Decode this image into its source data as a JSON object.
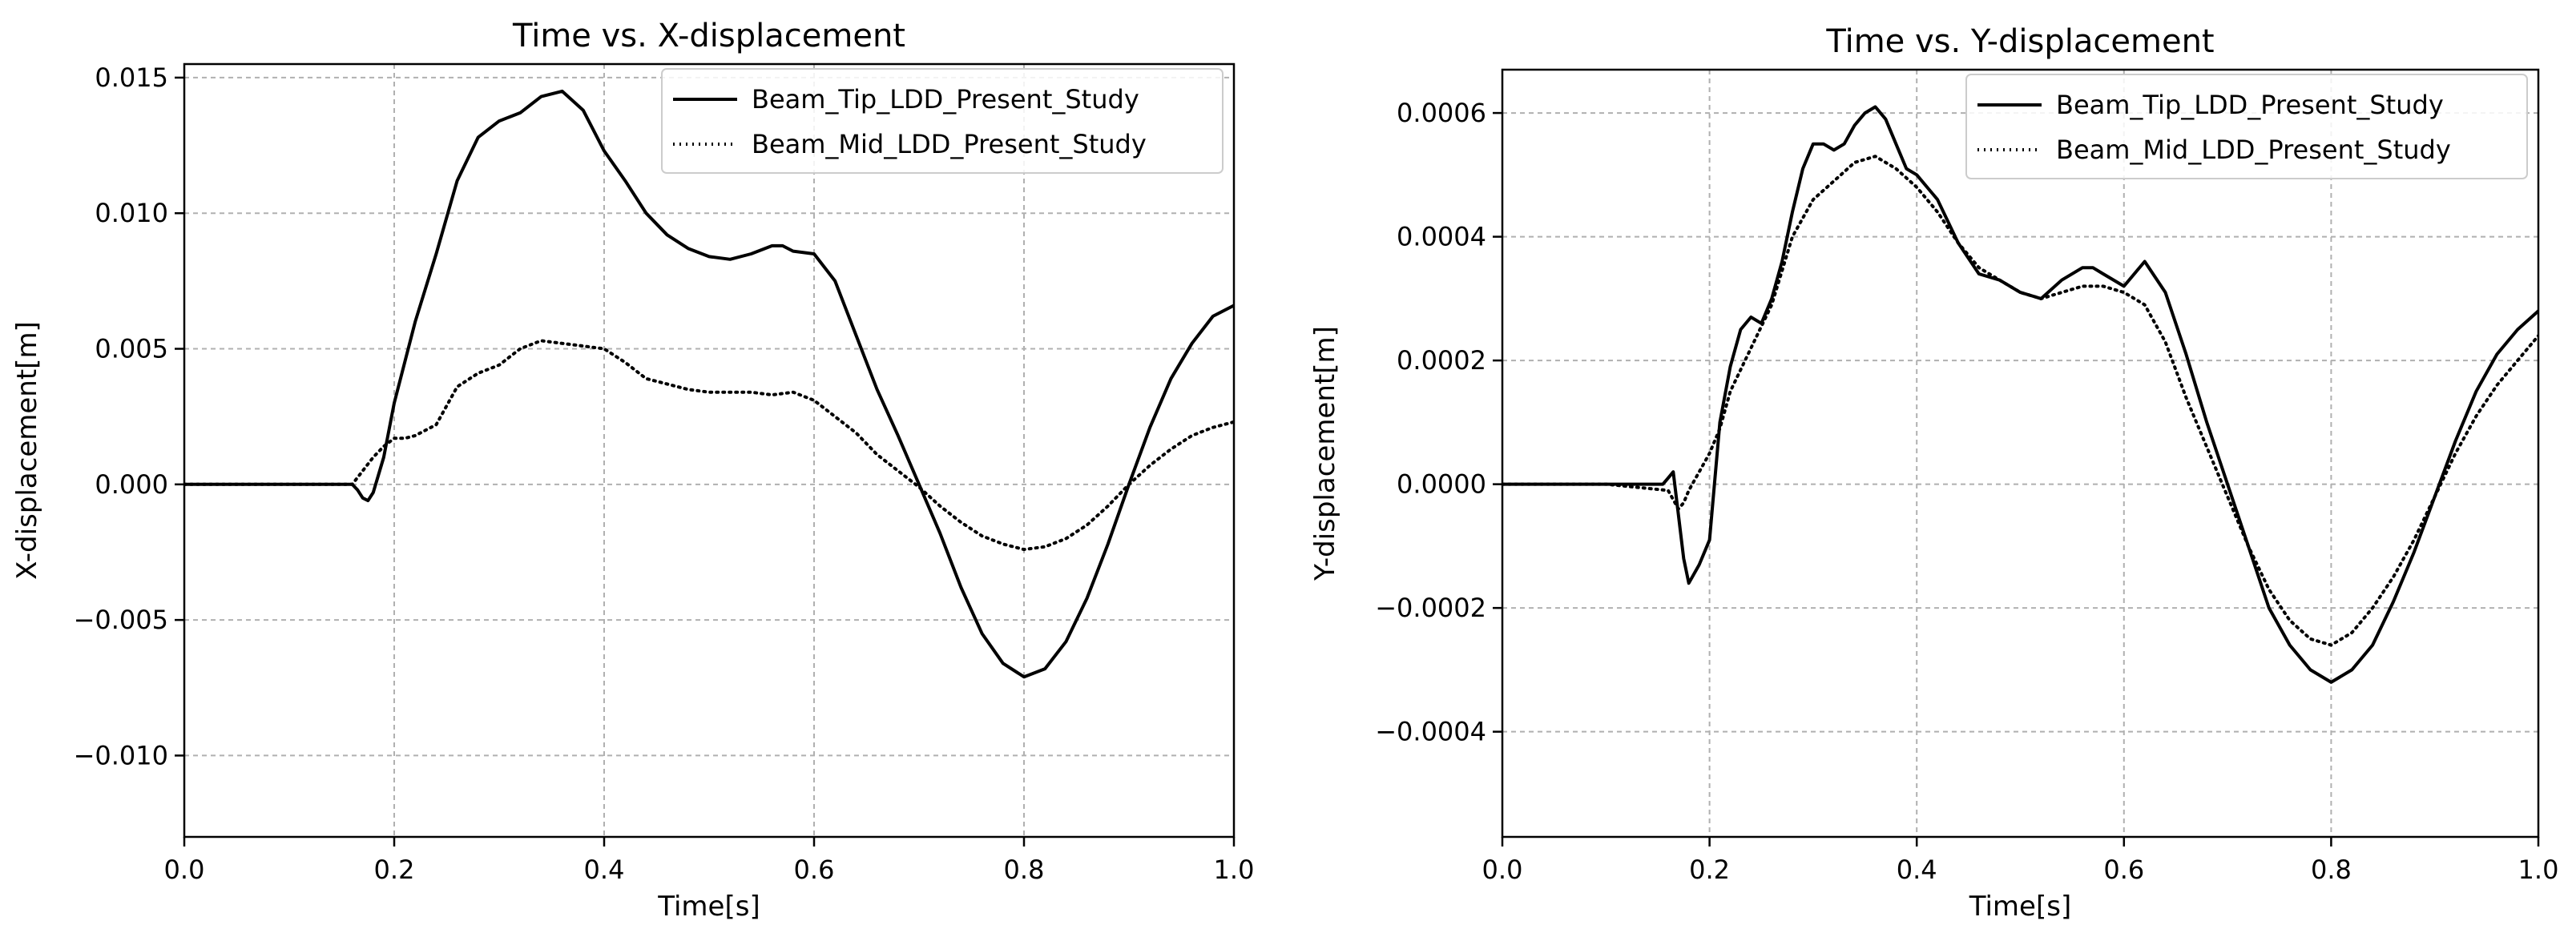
{
  "chart_data": [
    {
      "type": "line",
      "title": "Time vs. X-displacement",
      "xlabel": "Time[s]",
      "ylabel": "X-displacement[m]",
      "xlim": [
        0.0,
        1.0
      ],
      "ylim": [
        -0.013,
        0.0155
      ],
      "xticks": [
        0.0,
        0.2,
        0.4,
        0.6,
        0.8,
        1.0
      ],
      "xtick_labels": [
        "0.0",
        "0.2",
        "0.4",
        "0.6",
        "0.8",
        "1.0"
      ],
      "yticks": [
        -0.01,
        -0.005,
        0.0,
        0.005,
        0.01,
        0.015
      ],
      "ytick_labels": [
        "−0.010",
        "−0.005",
        "0.000",
        "0.005",
        "0.010",
        "0.015"
      ],
      "grid": true,
      "legend_position": "top-right",
      "series": [
        {
          "name": "Beam_Tip_LDD_Present_Study",
          "style": "solid",
          "color": "#000000",
          "x": [
            0.0,
            0.1,
            0.16,
            0.165,
            0.17,
            0.175,
            0.18,
            0.19,
            0.2,
            0.21,
            0.22,
            0.24,
            0.26,
            0.28,
            0.3,
            0.32,
            0.34,
            0.36,
            0.38,
            0.4,
            0.42,
            0.44,
            0.46,
            0.48,
            0.5,
            0.52,
            0.54,
            0.56,
            0.57,
            0.58,
            0.6,
            0.62,
            0.64,
            0.66,
            0.68,
            0.7,
            0.72,
            0.74,
            0.76,
            0.78,
            0.8,
            0.82,
            0.84,
            0.86,
            0.88,
            0.9,
            0.92,
            0.94,
            0.96,
            0.98,
            1.0
          ],
          "y": [
            0.0,
            0.0,
            0.0,
            -0.0002,
            -0.0005,
            -0.0006,
            -0.0003,
            0.001,
            0.003,
            0.0045,
            0.006,
            0.0085,
            0.0112,
            0.0128,
            0.0134,
            0.0137,
            0.0143,
            0.0145,
            0.0138,
            0.0123,
            0.0112,
            0.01,
            0.0092,
            0.0087,
            0.0084,
            0.0083,
            0.0085,
            0.0088,
            0.0088,
            0.0086,
            0.0085,
            0.0075,
            0.0055,
            0.0035,
            0.0018,
            0.0,
            -0.0018,
            -0.0038,
            -0.0055,
            -0.0066,
            -0.0071,
            -0.0068,
            -0.0058,
            -0.0042,
            -0.0022,
            0.0,
            0.0021,
            0.0039,
            0.0052,
            0.0062,
            0.0066
          ]
        },
        {
          "name": "Beam_Mid_LDD_Present_Study",
          "style": "dotted",
          "color": "#000000",
          "x": [
            0.0,
            0.1,
            0.16,
            0.17,
            0.18,
            0.19,
            0.2,
            0.21,
            0.22,
            0.24,
            0.26,
            0.28,
            0.3,
            0.32,
            0.34,
            0.36,
            0.38,
            0.4,
            0.42,
            0.44,
            0.46,
            0.48,
            0.5,
            0.52,
            0.54,
            0.56,
            0.58,
            0.6,
            0.62,
            0.64,
            0.66,
            0.68,
            0.7,
            0.72,
            0.74,
            0.76,
            0.78,
            0.8,
            0.82,
            0.84,
            0.86,
            0.88,
            0.9,
            0.92,
            0.94,
            0.96,
            0.98,
            1.0
          ],
          "y": [
            0.0,
            0.0,
            0.0,
            0.0005,
            0.001,
            0.0014,
            0.0017,
            0.0017,
            0.0018,
            0.0022,
            0.0036,
            0.0041,
            0.0044,
            0.005,
            0.0053,
            0.0052,
            0.0051,
            0.005,
            0.0045,
            0.0039,
            0.0037,
            0.0035,
            0.0034,
            0.0034,
            0.0034,
            0.0033,
            0.0034,
            0.0031,
            0.0025,
            0.0019,
            0.0011,
            0.0005,
            -0.0001,
            -0.0008,
            -0.0014,
            -0.0019,
            -0.0022,
            -0.0024,
            -0.0023,
            -0.002,
            -0.0015,
            -0.0008,
            0.0,
            0.0007,
            0.0013,
            0.0018,
            0.0021,
            0.0023
          ]
        }
      ]
    },
    {
      "type": "line",
      "title": "Time vs. Y-displacement",
      "xlabel": "Time[s]",
      "ylabel": "Y-displacement[m]",
      "xlim": [
        0.0,
        1.0
      ],
      "ylim": [
        -0.00057,
        0.00067
      ],
      "xticks": [
        0.0,
        0.2,
        0.4,
        0.6,
        0.8,
        1.0
      ],
      "xtick_labels": [
        "0.0",
        "0.2",
        "0.4",
        "0.6",
        "0.8",
        "1.0"
      ],
      "yticks": [
        -0.0004,
        -0.0002,
        0.0,
        0.0002,
        0.0004,
        0.0006
      ],
      "ytick_labels": [
        "−0.0004",
        "−0.0002",
        "0.0000",
        "0.0002",
        "0.0004",
        "0.0006"
      ],
      "grid": true,
      "legend_position": "top-right",
      "series": [
        {
          "name": "Beam_Tip_LDD_Present_Study",
          "style": "solid",
          "color": "#000000",
          "x": [
            0.0,
            0.1,
            0.155,
            0.16,
            0.165,
            0.17,
            0.175,
            0.18,
            0.19,
            0.2,
            0.21,
            0.22,
            0.23,
            0.24,
            0.25,
            0.26,
            0.27,
            0.28,
            0.29,
            0.3,
            0.31,
            0.32,
            0.33,
            0.34,
            0.35,
            0.36,
            0.37,
            0.38,
            0.39,
            0.4,
            0.42,
            0.44,
            0.46,
            0.48,
            0.5,
            0.52,
            0.54,
            0.56,
            0.57,
            0.58,
            0.6,
            0.62,
            0.64,
            0.66,
            0.68,
            0.7,
            0.72,
            0.74,
            0.76,
            0.78,
            0.8,
            0.82,
            0.84,
            0.86,
            0.88,
            0.9,
            0.92,
            0.94,
            0.96,
            0.98,
            1.0
          ],
          "y": [
            0.0,
            0.0,
            0.0,
            1e-05,
            2e-05,
            -5e-05,
            -0.00012,
            -0.00016,
            -0.00013,
            -9e-05,
            0.0001,
            0.00019,
            0.00025,
            0.00027,
            0.00026,
            0.0003,
            0.00036,
            0.00044,
            0.00051,
            0.00055,
            0.00055,
            0.00054,
            0.00055,
            0.00058,
            0.0006,
            0.00061,
            0.00059,
            0.00055,
            0.00051,
            0.0005,
            0.00046,
            0.00039,
            0.00034,
            0.00033,
            0.00031,
            0.0003,
            0.00033,
            0.00035,
            0.00035,
            0.00034,
            0.00032,
            0.00036,
            0.00031,
            0.00021,
            0.0001,
            0.0,
            -0.0001,
            -0.0002,
            -0.00026,
            -0.0003,
            -0.00032,
            -0.0003,
            -0.00026,
            -0.00019,
            -0.00011,
            -2e-05,
            7e-05,
            0.00015,
            0.00021,
            0.00025,
            0.00028
          ]
        },
        {
          "name": "Beam_Mid_LDD_Present_Study",
          "style": "dotted",
          "color": "#000000",
          "x": [
            0.0,
            0.1,
            0.16,
            0.17,
            0.175,
            0.18,
            0.19,
            0.2,
            0.21,
            0.22,
            0.24,
            0.26,
            0.28,
            0.3,
            0.32,
            0.34,
            0.36,
            0.38,
            0.4,
            0.42,
            0.44,
            0.46,
            0.48,
            0.5,
            0.52,
            0.54,
            0.56,
            0.58,
            0.6,
            0.62,
            0.64,
            0.66,
            0.68,
            0.7,
            0.72,
            0.74,
            0.76,
            0.78,
            0.8,
            0.82,
            0.84,
            0.86,
            0.88,
            0.9,
            0.92,
            0.94,
            0.96,
            0.98,
            1.0
          ],
          "y": [
            0.0,
            0.0,
            -1e-05,
            -4e-05,
            -3e-05,
            -1e-05,
            2e-05,
            5e-05,
            9e-05,
            0.00015,
            0.00022,
            0.00029,
            0.0004,
            0.00046,
            0.00049,
            0.00052,
            0.00053,
            0.00051,
            0.00048,
            0.00044,
            0.00039,
            0.00035,
            0.00033,
            0.00031,
            0.0003,
            0.00031,
            0.00032,
            0.00032,
            0.00031,
            0.00029,
            0.00023,
            0.00014,
            6e-05,
            -2e-05,
            -0.0001,
            -0.00017,
            -0.00022,
            -0.00025,
            -0.00026,
            -0.00024,
            -0.0002,
            -0.00015,
            -9e-05,
            -2e-05,
            5e-05,
            0.00011,
            0.00016,
            0.0002,
            0.00024
          ]
        }
      ]
    }
  ]
}
